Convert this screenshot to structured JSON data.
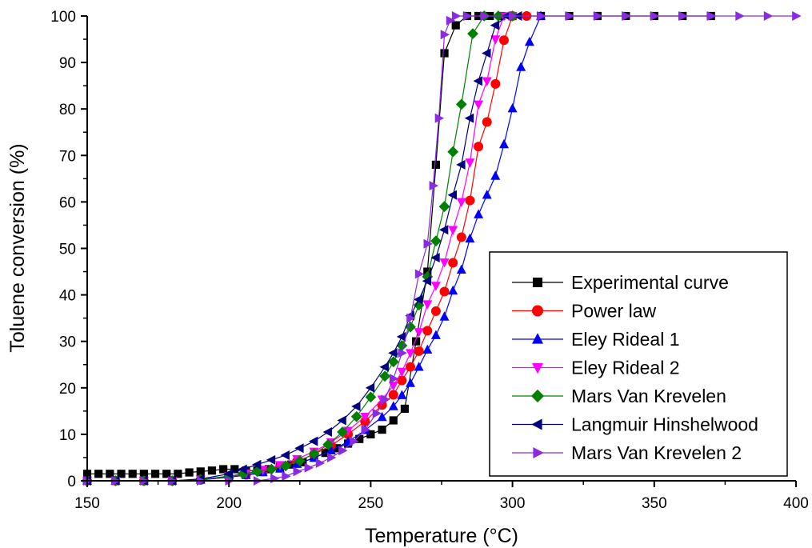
{
  "chart_data": {
    "type": "line",
    "xlabel": "Temperature (°C)",
    "ylabel": "Toluene conversion (%)",
    "xlim": [
      150,
      400
    ],
    "ylim": [
      0,
      100
    ],
    "xticks": [
      150,
      200,
      250,
      300,
      350,
      400
    ],
    "yticks": [
      0,
      10,
      20,
      30,
      40,
      50,
      60,
      70,
      80,
      90,
      100
    ],
    "grid": false,
    "legend_position": "bottom-right",
    "series": [
      {
        "name": "Experimental curve",
        "color": "#000000",
        "marker": "square",
        "x": [
          150,
          154,
          158,
          162,
          166,
          170,
          174,
          178,
          182,
          186,
          190,
          194,
          198,
          202,
          206,
          210,
          214,
          218,
          222,
          226,
          230,
          234,
          238,
          242,
          246,
          250,
          254,
          258,
          262,
          266,
          270,
          273,
          276,
          280,
          284,
          288,
          292,
          296,
          300,
          310,
          320,
          330,
          340,
          350,
          360,
          370
        ],
        "y": [
          1.5,
          1.5,
          1.5,
          1.5,
          1.5,
          1.5,
          1.5,
          1.5,
          1.5,
          1.8,
          2.0,
          2.2,
          2.5,
          2.5,
          2.2,
          2.2,
          2.5,
          3.0,
          3.5,
          4.0,
          5.0,
          6.0,
          7.0,
          8.0,
          9.0,
          10.0,
          11.0,
          13.0,
          15.5,
          30.0,
          45.0,
          68.0,
          92.0,
          98.0,
          100,
          100,
          100,
          100,
          100,
          100,
          100,
          100,
          100,
          100,
          100,
          100
        ]
      },
      {
        "name": "Power law",
        "color": "#ff0000",
        "marker": "circle",
        "x": [
          150,
          160,
          170,
          180,
          190,
          200,
          206,
          212,
          218,
          224,
          230,
          236,
          242,
          248,
          254,
          258,
          261,
          264,
          267,
          270,
          273,
          276,
          279,
          282,
          285,
          288,
          291,
          294,
          297,
          300,
          305
        ],
        "y": [
          0,
          0,
          0,
          0,
          0.2,
          0.8,
          1.3,
          2.0,
          3.0,
          4.2,
          5.7,
          7.6,
          10.0,
          12.8,
          16.3,
          18.5,
          21.6,
          24.5,
          27.9,
          32.3,
          36.5,
          40.7,
          46.9,
          52.4,
          60.3,
          71.9,
          77.2,
          85.4,
          94.8,
          100,
          100
        ]
      },
      {
        "name": "Eley Rideal 1",
        "color": "#0000ff",
        "marker": "triangle-up",
        "x": [
          150,
          160,
          170,
          180,
          190,
          200,
          206,
          212,
          218,
          224,
          230,
          236,
          242,
          248,
          254,
          258,
          261,
          264,
          267,
          270,
          273,
          276,
          279,
          282,
          285,
          288,
          291,
          294,
          297,
          300,
          303,
          306,
          310
        ],
        "y": [
          0,
          0,
          0,
          0,
          0.2,
          0.8,
          1.2,
          1.8,
          2.6,
          3.6,
          4.9,
          6.5,
          8.4,
          10.9,
          13.7,
          16.0,
          18.4,
          21.0,
          24.5,
          28.2,
          31.3,
          35.3,
          40.9,
          45.4,
          52.1,
          57.3,
          61.5,
          65.6,
          72.4,
          80.1,
          89.0,
          94.4,
          100
        ]
      },
      {
        "name": "Eley Rideal 2",
        "color": "#ff00ff",
        "marker": "triangle-down",
        "x": [
          150,
          160,
          170,
          180,
          190,
          200,
          206,
          212,
          218,
          224,
          230,
          236,
          242,
          248,
          254,
          258,
          261,
          264,
          267,
          270,
          273,
          276,
          279,
          282,
          285,
          288,
          291,
          294,
          297,
          300
        ],
        "y": [
          0,
          0,
          0,
          0,
          0.3,
          1.0,
          1.6,
          2.4,
          3.4,
          4.7,
          6.3,
          8.3,
          10.8,
          13.8,
          17.5,
          20.5,
          23.5,
          27.5,
          32.0,
          38.0,
          42.0,
          47.0,
          54.0,
          60.0,
          68.5,
          81.0,
          86.0,
          95.0,
          100,
          100
        ]
      },
      {
        "name": "Mars Van Krevelen",
        "color": "#008000",
        "marker": "diamond",
        "x": [
          150,
          160,
          170,
          180,
          190,
          200,
          205,
          210,
          215,
          220,
          225,
          230,
          235,
          240,
          245,
          250,
          255,
          258,
          261,
          264,
          267,
          270,
          273,
          276,
          279,
          282,
          286,
          290,
          295,
          300
        ],
        "y": [
          0,
          0,
          0,
          0,
          0.3,
          1.0,
          1.5,
          2.0,
          2.5,
          3.2,
          4.3,
          5.8,
          7.8,
          10.5,
          13.8,
          18.0,
          22.5,
          25.6,
          29.1,
          33.1,
          37.8,
          43.9,
          51.6,
          59.0,
          70.8,
          81.0,
          96.2,
          100,
          100,
          100
        ]
      },
      {
        "name": "Langmuir Hinshelwood",
        "color": "#000080",
        "marker": "triangle-left",
        "x": [
          150,
          160,
          170,
          180,
          190,
          200,
          205,
          210,
          215,
          220,
          225,
          230,
          235,
          240,
          245,
          250,
          255,
          258,
          261,
          264,
          267,
          270,
          273,
          276,
          279,
          282,
          285,
          288,
          291,
          294,
          298,
          302
        ],
        "y": [
          0,
          0,
          0,
          0,
          0.4,
          1.5,
          2.5,
          3.5,
          4.5,
          5.5,
          7.0,
          8.5,
          10.5,
          13.0,
          16.0,
          20.0,
          24.5,
          27.5,
          31.0,
          35.5,
          39.0,
          43.0,
          48.0,
          54.0,
          61.5,
          68.0,
          78.0,
          86.0,
          92.0,
          98.0,
          100,
          100
        ]
      },
      {
        "name": "Mars Van Krevelen 2",
        "color": "#8a2be2",
        "marker": "triangle-right",
        "x": [
          150,
          160,
          170,
          180,
          190,
          200,
          210,
          216,
          220,
          224,
          228,
          232,
          236,
          240,
          244,
          248,
          252,
          255,
          258,
          261,
          264,
          267,
          270,
          272,
          274,
          276,
          278,
          280,
          284,
          290,
          300,
          310,
          320,
          330,
          340,
          350,
          360,
          370,
          380,
          390,
          400
        ],
        "y": [
          0,
          0,
          0,
          0,
          0,
          0,
          0,
          0.5,
          1.0,
          2.0,
          2.8,
          3.8,
          5.0,
          6.5,
          8.5,
          11.0,
          14.5,
          17.5,
          22.0,
          27.5,
          35.0,
          44.5,
          51.0,
          63.5,
          78.0,
          96.0,
          99.0,
          100,
          100,
          100,
          100,
          100,
          100,
          100,
          100,
          100,
          100,
          100,
          100,
          100,
          100
        ]
      }
    ]
  }
}
